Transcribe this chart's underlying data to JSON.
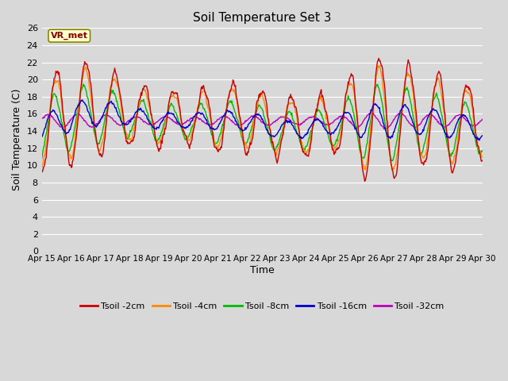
{
  "title": "Soil Temperature Set 3",
  "xlabel": "Time",
  "ylabel": "Soil Temperature (C)",
  "xlim": [
    0,
    15
  ],
  "ylim": [
    0,
    26
  ],
  "yticks": [
    0,
    2,
    4,
    6,
    8,
    10,
    12,
    14,
    16,
    18,
    20,
    22,
    24,
    26
  ],
  "xtick_labels": [
    "Apr 15",
    "Apr 16",
    "Apr 17",
    "Apr 18",
    "Apr 19",
    "Apr 20",
    "Apr 21",
    "Apr 22",
    "Apr 23",
    "Apr 24",
    "Apr 25",
    "Apr 26",
    "Apr 27",
    "Apr 28",
    "Apr 29",
    "Apr 30"
  ],
  "series_colors": [
    "#cc0000",
    "#ff8800",
    "#00bb00",
    "#0000cc",
    "#bb00bb"
  ],
  "series_labels": [
    "Tsoil -2cm",
    "Tsoil -4cm",
    "Tsoil -8cm",
    "Tsoil -16cm",
    "Tsoil -32cm"
  ],
  "background_color": "#d8d8d8",
  "plot_bg_color": "#d8d8d8",
  "grid_color": "#ffffff",
  "annotation_text": "VR_met",
  "annotation_bg": "#ffffcc",
  "annotation_border": "#888800"
}
